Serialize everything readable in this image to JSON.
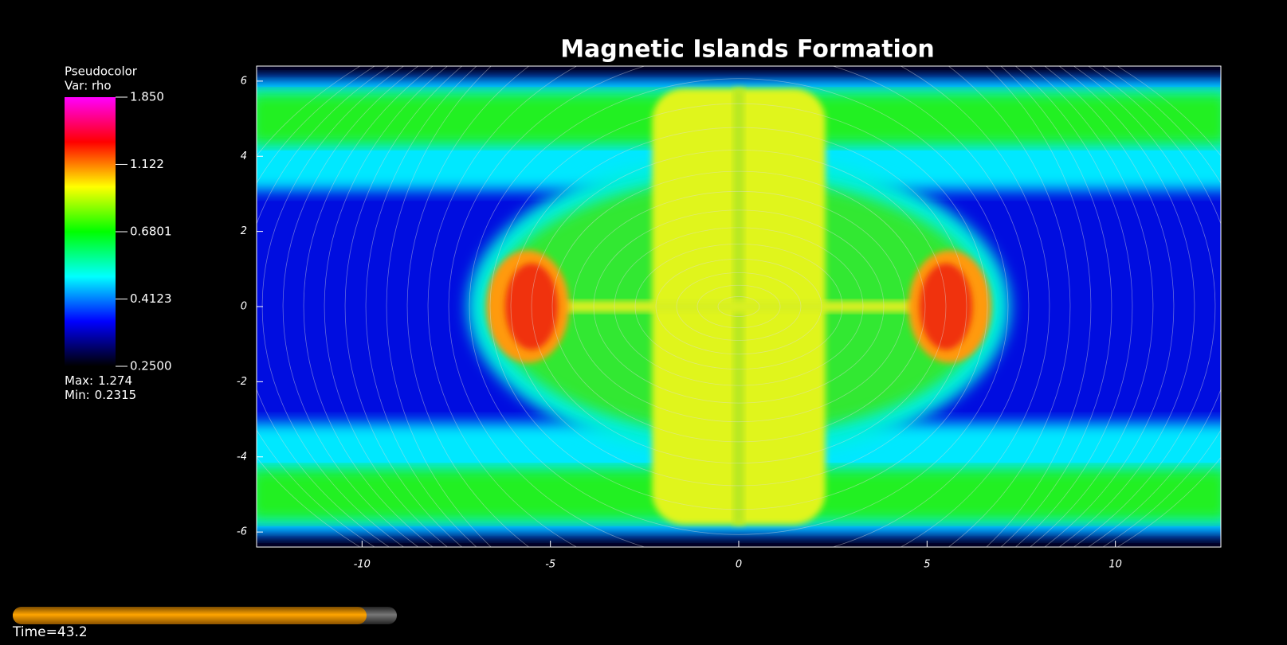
{
  "chart_data": {
    "type": "pseudocolor",
    "title": "Magnetic Islands Formation",
    "xlim": [
      -12.8,
      12.8
    ],
    "ylim": [
      -6.4,
      6.4
    ],
    "xticks": [
      -10,
      -5,
      0,
      5,
      10
    ],
    "yticks": [
      -6,
      -4,
      -2,
      0,
      2,
      4,
      6
    ],
    "legend": {
      "title": "Pseudocolor",
      "variable": "Var: rho",
      "colorbar_lim": [
        0.25,
        1.85
      ],
      "log": true,
      "colormap": [
        "#000000",
        "#0000ff",
        "#00ffff",
        "#00ff00",
        "#ffff00",
        "#ff0000",
        "#ff00ff"
      ],
      "ticks": [
        {
          "value": 1.85,
          "label": "1.850"
        },
        1.122,
        {
          "value": 0.6801,
          "label": "0.6801"
        },
        {
          "value": 0.4123,
          "label": "0.4123"
        },
        {
          "value": 0.25,
          "label": "0.2500"
        }
      ],
      "max_label": "Max:",
      "max": 1.274,
      "min_label": "Min:",
      "min": 0.2315
    },
    "time_label": "Time=",
    "time": 43.2
  }
}
